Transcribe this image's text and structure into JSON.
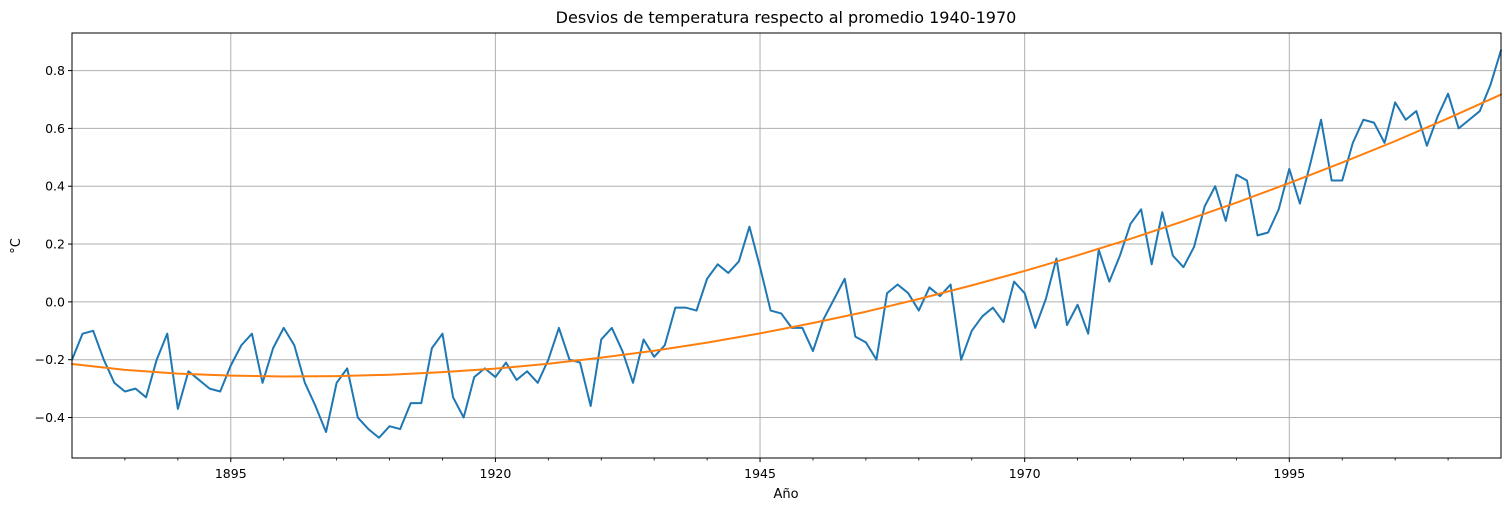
{
  "chart_data": {
    "type": "line",
    "title": "Desvios de temperatura respecto al promedio 1940-1970",
    "xlabel": "Año",
    "ylabel": "°C",
    "xlim": [
      1880,
      2015
    ],
    "ylim": [
      -0.54,
      0.93
    ],
    "grid": true,
    "x_major_ticks": [
      1895,
      1920,
      1945,
      1970,
      1995
    ],
    "x_minor_ticks": [
      1885,
      1890,
      1900,
      1905,
      1910,
      1915,
      1925,
      1930,
      1935,
      1940,
      1950,
      1955,
      1960,
      1965,
      1975,
      1980,
      1985,
      1990,
      2000,
      2005,
      2010
    ],
    "y_ticks": [
      -0.4,
      -0.2,
      0.0,
      0.2,
      0.4,
      0.6,
      0.8
    ],
    "y_tick_labels": [
      "−0.4",
      "−0.2",
      "0.0",
      "0.2",
      "0.4",
      "0.6",
      "0.8"
    ],
    "colors": {
      "series_1": "#1f77b4",
      "series_2": "#ff7f0e",
      "grid": "#b0b0b0"
    },
    "series": [
      {
        "x": [
          1880,
          1881,
          1882,
          1883,
          1884,
          1885,
          1886,
          1887,
          1888,
          1889,
          1890,
          1891,
          1892,
          1893,
          1894,
          1895,
          1896,
          1897,
          1898,
          1899,
          1900,
          1901,
          1902,
          1903,
          1904,
          1905,
          1906,
          1907,
          1908,
          1909,
          1910,
          1911,
          1912,
          1913,
          1914,
          1915,
          1916,
          1917,
          1918,
          1919,
          1920,
          1921,
          1922,
          1923,
          1924,
          1925,
          1926,
          1927,
          1928,
          1929,
          1930,
          1931,
          1932,
          1933,
          1934,
          1935,
          1936,
          1937,
          1938,
          1939,
          1940,
          1941,
          1942,
          1943,
          1944,
          1945,
          1946,
          1947,
          1948,
          1949,
          1950,
          1951,
          1952,
          1953,
          1954,
          1955,
          1956,
          1957,
          1958,
          1959,
          1960,
          1961,
          1962,
          1963,
          1964,
          1965,
          1966,
          1967,
          1968,
          1969,
          1970,
          1971,
          1972,
          1973,
          1974,
          1975,
          1976,
          1977,
          1978,
          1979,
          1980,
          1981,
          1982,
          1983,
          1984,
          1985,
          1986,
          1987,
          1988,
          1989,
          1990,
          1991,
          1992,
          1993,
          1994,
          1995,
          1996,
          1997,
          1998,
          1999,
          2000,
          2001,
          2002,
          2003,
          2004,
          2005,
          2006,
          2007,
          2008,
          2009,
          2010,
          2011,
          2012,
          2013,
          2014,
          2015
        ],
        "values": [
          -0.2,
          -0.11,
          -0.1,
          -0.2,
          -0.28,
          -0.31,
          -0.3,
          -0.33,
          -0.2,
          -0.11,
          -0.37,
          -0.24,
          -0.27,
          -0.3,
          -0.31,
          -0.22,
          -0.15,
          -0.11,
          -0.28,
          -0.16,
          -0.09,
          -0.15,
          -0.28,
          -0.36,
          -0.45,
          -0.28,
          -0.23,
          -0.4,
          -0.44,
          -0.47,
          -0.43,
          -0.44,
          -0.35,
          -0.35,
          -0.16,
          -0.11,
          -0.33,
          -0.4,
          -0.26,
          -0.23,
          -0.26,
          -0.21,
          -0.27,
          -0.24,
          -0.28,
          -0.2,
          -0.09,
          -0.2,
          -0.21,
          -0.36,
          -0.13,
          -0.09,
          -0.17,
          -0.28,
          -0.13,
          -0.19,
          -0.15,
          -0.02,
          -0.02,
          -0.03,
          0.08,
          0.13,
          0.1,
          0.14,
          0.26,
          0.12,
          -0.03,
          -0.04,
          -0.09,
          -0.09,
          -0.17,
          -0.06,
          0.01,
          0.08,
          -0.12,
          -0.14,
          -0.2,
          0.03,
          0.06,
          0.03,
          -0.03,
          0.05,
          0.02,
          0.06,
          -0.2,
          -0.1,
          -0.05,
          -0.02,
          -0.07,
          0.07,
          0.03,
          -0.09,
          0.01,
          0.15,
          -0.08,
          -0.01,
          -0.11,
          0.18,
          0.07,
          0.16,
          0.27,
          0.32,
          0.13,
          0.31,
          0.16,
          0.12,
          0.19,
          0.33,
          0.4,
          0.28,
          0.44,
          0.42,
          0.23,
          0.24,
          0.32,
          0.46,
          0.34,
          0.48,
          0.63,
          0.42,
          0.42,
          0.55,
          0.63,
          0.62,
          0.55,
          0.69,
          0.63,
          0.66,
          0.54,
          0.64,
          0.72,
          0.6,
          0.63,
          0.66,
          0.75,
          0.87
        ]
      },
      {
        "x": [
          1880,
          1885,
          1890,
          1895,
          1900,
          1905,
          1910,
          1915,
          1920,
          1925,
          1930,
          1935,
          1940,
          1945,
          1950,
          1955,
          1960,
          1965,
          1970,
          1975,
          1980,
          1985,
          1990,
          1995,
          2000,
          2005,
          2010,
          2015
        ],
        "values": [
          -0.215,
          -0.235,
          -0.248,
          -0.255,
          -0.258,
          -0.257,
          -0.252,
          -0.243,
          -0.231,
          -0.214,
          -0.193,
          -0.169,
          -0.141,
          -0.109,
          -0.073,
          -0.034,
          0.01,
          0.057,
          0.107,
          0.161,
          0.218,
          0.279,
          0.343,
          0.411,
          0.482,
          0.556,
          0.635,
          0.717
        ]
      }
    ]
  }
}
